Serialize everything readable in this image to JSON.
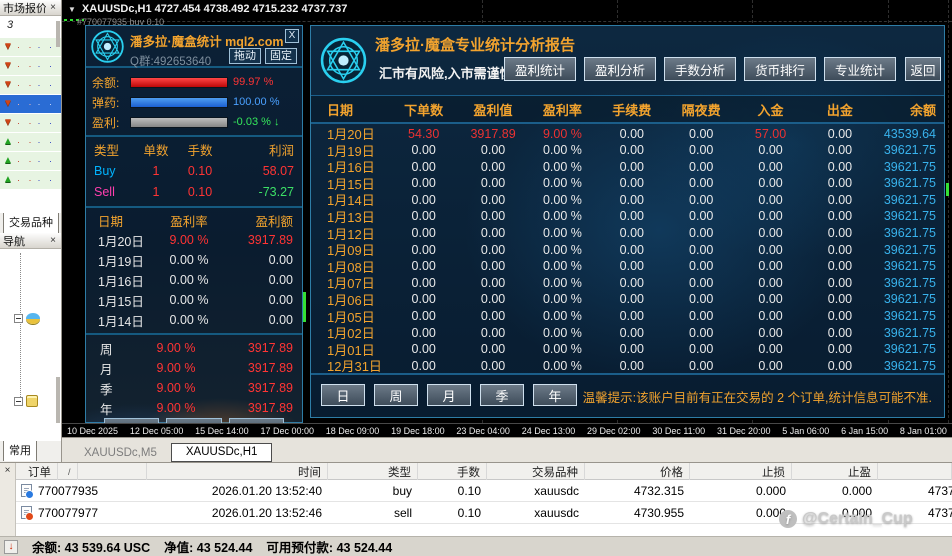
{
  "icons": {
    "close": "×",
    "dropdown": "▼",
    "arrow_down": "▼",
    "arrow_up": "▲",
    "sort": "/",
    "status_arrow": "↓"
  },
  "colors": {
    "accent_orange": "#f2a32e",
    "hot_red": "#ec3232",
    "balance_cyan": "#38b2ec",
    "profit_green": "#3ce066",
    "buy_cyan": "#00b4ff",
    "sell_magenta": "#ff3fae",
    "panel_border_cyan": "#2e7da6",
    "bar_red": "#d81616",
    "bar_blue": "#2f7bdc",
    "bar_gray": "#9a9a9a"
  },
  "market_watch": {
    "title": "市场报价",
    "symbol_text": "3",
    "price_dots": "· ·",
    "rows": [
      {
        "dir": "down"
      },
      {
        "dir": "down"
      },
      {
        "dir": "down"
      },
      {
        "dir": "down",
        "selected": true
      },
      {
        "dir": "down"
      },
      {
        "dir": "up"
      },
      {
        "dir": "up"
      },
      {
        "dir": "up"
      }
    ],
    "tab": "交易品种"
  },
  "navigator": {
    "title": "导航",
    "tab": "常用"
  },
  "chart": {
    "symbol_title": "XAUUSDc,H1  4727.454 4738.492 4715.232 4737.737",
    "order_label": "#770077935 buy 0.10",
    "tabs": [
      {
        "label": "XAUUSDc,M5",
        "active": false
      },
      {
        "label": "XAUUSDc,H1",
        "active": true
      }
    ],
    "time_axis": [
      "10 Dec 2025",
      "12 Dec 05:00",
      "15 Dec 14:00",
      "17 Dec 00:00",
      "18 Dec 09:00",
      "19 Dec 18:00",
      "23 Dec 04:00",
      "24 Dec 13:00",
      "29 Dec 02:00",
      "30 Dec 11:00",
      "31 Dec 20:00",
      "5 Jan 06:00",
      "6 Jan 15:00",
      "8 Jan 01:00"
    ]
  },
  "stats_widget": {
    "title": "潘多拉·魔盒统计 mql2.com",
    "close_button": "X",
    "qq_group": "Q群:492653640",
    "drag_button": "拖动",
    "pin_button": "固定",
    "gauges": [
      {
        "label": "余额:",
        "value": "99.97 %",
        "bar": "red",
        "fill": 100
      },
      {
        "label": "弹药:",
        "value": "100.00 %",
        "bar": "blue",
        "fill": 100
      },
      {
        "label": "盈利:",
        "value": "-0.03 % ↓",
        "bar": "gray",
        "fill": 100
      }
    ],
    "type_table": {
      "headers": [
        "类型",
        "单数",
        "手数",
        "利润"
      ],
      "rows": [
        {
          "type": "Buy",
          "count": "1",
          "lots": "0.10",
          "profit": "58.07",
          "type_class": "buy",
          "profit_class": "red"
        },
        {
          "type": "Sell",
          "count": "1",
          "lots": "0.10",
          "profit": "-73.27",
          "type_class": "sell",
          "profit_class": "green"
        }
      ]
    },
    "daily_table": {
      "headers": [
        "日期",
        "盈利率",
        "盈利额"
      ],
      "rows": [
        {
          "date": "1月20日",
          "rate": "9.00 %",
          "amount": "3917.89",
          "hot": true
        },
        {
          "date": "1月19日",
          "rate": "0.00 %",
          "amount": "0.00",
          "hot": false
        },
        {
          "date": "1月16日",
          "rate": "0.00 %",
          "amount": "0.00",
          "hot": false
        },
        {
          "date": "1月15日",
          "rate": "0.00 %",
          "amount": "0.00",
          "hot": false
        },
        {
          "date": "1月14日",
          "rate": "0.00 %",
          "amount": "0.00",
          "hot": false
        }
      ]
    },
    "period_rows": [
      {
        "label": "周",
        "rate": "9.00 %",
        "amount": "3917.89"
      },
      {
        "label": "月",
        "rate": "9.00 %",
        "amount": "3917.89"
      },
      {
        "label": "季",
        "rate": "9.00 %",
        "amount": "3917.89"
      },
      {
        "label": "年",
        "rate": "9.00 %",
        "amount": "3917.89"
      }
    ]
  },
  "report": {
    "title": "潘多拉·魔盒专业统计分析报告",
    "subtitle": "汇市有风险,入市需谨慎！",
    "nav_buttons": [
      "盈利统计",
      "盈利分析",
      "手数分析",
      "货币排行",
      "专业统计"
    ],
    "back_button": "返回",
    "headers": [
      "日期",
      "下单数",
      "盈利值",
      "盈利率",
      "手续费",
      "隔夜费",
      "入金",
      "出金",
      "余额"
    ],
    "rows": [
      {
        "date": "1月20日",
        "orders": "54.30",
        "profit": "3917.89",
        "rate": "9.00 %",
        "commission": "0.00",
        "swap": "0.00",
        "deposit": "57.00",
        "withdraw": "0.00",
        "balance": "43539.64",
        "hot": true
      },
      {
        "date": "1月19日",
        "orders": "0.00",
        "profit": "0.00",
        "rate": "0.00 %",
        "commission": "0.00",
        "swap": "0.00",
        "deposit": "0.00",
        "withdraw": "0.00",
        "balance": "39621.75",
        "hot": false
      },
      {
        "date": "1月16日",
        "orders": "0.00",
        "profit": "0.00",
        "rate": "0.00 %",
        "commission": "0.00",
        "swap": "0.00",
        "deposit": "0.00",
        "withdraw": "0.00",
        "balance": "39621.75",
        "hot": false
      },
      {
        "date": "1月15日",
        "orders": "0.00",
        "profit": "0.00",
        "rate": "0.00 %",
        "commission": "0.00",
        "swap": "0.00",
        "deposit": "0.00",
        "withdraw": "0.00",
        "balance": "39621.75",
        "hot": false
      },
      {
        "date": "1月14日",
        "orders": "0.00",
        "profit": "0.00",
        "rate": "0.00 %",
        "commission": "0.00",
        "swap": "0.00",
        "deposit": "0.00",
        "withdraw": "0.00",
        "balance": "39621.75",
        "hot": false
      },
      {
        "date": "1月13日",
        "orders": "0.00",
        "profit": "0.00",
        "rate": "0.00 %",
        "commission": "0.00",
        "swap": "0.00",
        "deposit": "0.00",
        "withdraw": "0.00",
        "balance": "39621.75",
        "hot": false
      },
      {
        "date": "1月12日",
        "orders": "0.00",
        "profit": "0.00",
        "rate": "0.00 %",
        "commission": "0.00",
        "swap": "0.00",
        "deposit": "0.00",
        "withdraw": "0.00",
        "balance": "39621.75",
        "hot": false
      },
      {
        "date": "1月09日",
        "orders": "0.00",
        "profit": "0.00",
        "rate": "0.00 %",
        "commission": "0.00",
        "swap": "0.00",
        "deposit": "0.00",
        "withdraw": "0.00",
        "balance": "39621.75",
        "hot": false
      },
      {
        "date": "1月08日",
        "orders": "0.00",
        "profit": "0.00",
        "rate": "0.00 %",
        "commission": "0.00",
        "swap": "0.00",
        "deposit": "0.00",
        "withdraw": "0.00",
        "balance": "39621.75",
        "hot": false
      },
      {
        "date": "1月07日",
        "orders": "0.00",
        "profit": "0.00",
        "rate": "0.00 %",
        "commission": "0.00",
        "swap": "0.00",
        "deposit": "0.00",
        "withdraw": "0.00",
        "balance": "39621.75",
        "hot": false
      },
      {
        "date": "1月06日",
        "orders": "0.00",
        "profit": "0.00",
        "rate": "0.00 %",
        "commission": "0.00",
        "swap": "0.00",
        "deposit": "0.00",
        "withdraw": "0.00",
        "balance": "39621.75",
        "hot": false
      },
      {
        "date": "1月05日",
        "orders": "0.00",
        "profit": "0.00",
        "rate": "0.00 %",
        "commission": "0.00",
        "swap": "0.00",
        "deposit": "0.00",
        "withdraw": "0.00",
        "balance": "39621.75",
        "hot": false
      },
      {
        "date": "1月02日",
        "orders": "0.00",
        "profit": "0.00",
        "rate": "0.00 %",
        "commission": "0.00",
        "swap": "0.00",
        "deposit": "0.00",
        "withdraw": "0.00",
        "balance": "39621.75",
        "hot": false
      },
      {
        "date": "1月01日",
        "orders": "0.00",
        "profit": "0.00",
        "rate": "0.00 %",
        "commission": "0.00",
        "swap": "0.00",
        "deposit": "0.00",
        "withdraw": "0.00",
        "balance": "39621.75",
        "hot": false
      },
      {
        "date": "12月31日",
        "orders": "0.00",
        "profit": "0.00",
        "rate": "0.00 %",
        "commission": "0.00",
        "swap": "0.00",
        "deposit": "0.00",
        "withdraw": "0.00",
        "balance": "39621.75",
        "hot": false
      }
    ],
    "period_buttons": [
      "日",
      "周",
      "月",
      "季",
      "年"
    ],
    "notice": "温馨提示:该账户目前有正在交易的 2 个订单,统计信息可能不准."
  },
  "toolbox": {
    "headers": [
      "订单",
      "时间",
      "类型",
      "手数",
      "交易品种",
      "价格",
      "止损",
      "止盈"
    ],
    "rows": [
      {
        "order": "770077935",
        "time": "2026.01.20 13:52:40",
        "type": "buy",
        "lots": "0.10",
        "symbol": "xauusdc",
        "price": "4732.315",
        "sl": "0.000",
        "tp": "0.000",
        "cur": "4737"
      },
      {
        "order": "770077977",
        "time": "2026.01.20 13:52:46",
        "type": "sell",
        "lots": "0.10",
        "symbol": "xauusdc",
        "price": "4730.955",
        "sl": "0.000",
        "tp": "0.000",
        "cur": "4737"
      }
    ],
    "status": {
      "balance_label": "余额:",
      "balance": "43 539.64 USC",
      "equity_label": "净值:",
      "equity": "43 524.44",
      "margin_label": "可用预付款:",
      "margin": "43 524.44"
    }
  },
  "watermark": {
    "badge": "f",
    "text": "@Certain_Cup"
  }
}
